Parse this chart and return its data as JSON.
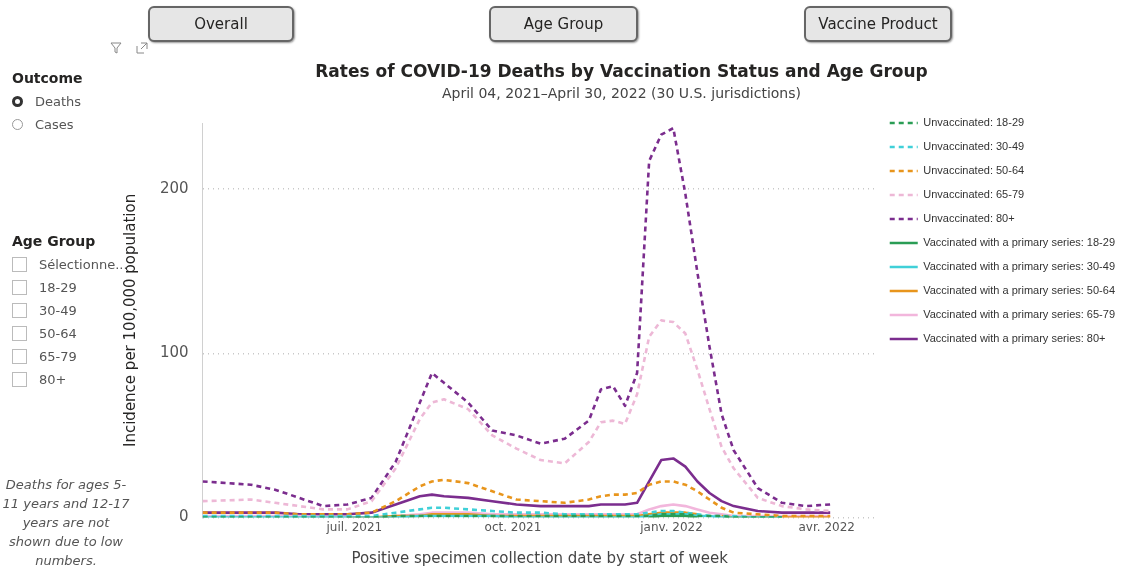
{
  "chart_data": {
    "type": "line",
    "title": "Rates of COVID-19 Deaths by Vaccination Status and Age Group",
    "subtitle": "April 04, 2021–April 30, 2022 (30 U.S. jurisdictions)",
    "xlabel": "Positive specimen collection date by start of week",
    "ylabel": "Incidence per 100,000 population",
    "annotations": [
      "Overall",
      "Age Group",
      "Vaccine Product",
      "Outcome",
      "Deaths",
      "Cases",
      "Age Group",
      "Sélectionne...",
      "18-29",
      "30-49",
      "50-64",
      "65-79",
      "80+",
      "Deaths for ages 5-11 years and 12-17 years are not shown due to low numbers."
    ],
    "x": [
      "2021-04-04",
      "2021-05-02",
      "2021-05-16",
      "2021-05-30",
      "2021-06-13",
      "2021-06-27",
      "2021-07-11",
      "2021-07-25",
      "2021-08-08",
      "2021-08-15",
      "2021-08-22",
      "2021-09-05",
      "2021-09-19",
      "2021-10-03",
      "2021-10-17",
      "2021-10-31",
      "2021-11-14",
      "2021-11-21",
      "2021-11-28",
      "2021-12-05",
      "2021-12-12",
      "2021-12-19",
      "2021-12-26",
      "2022-01-02",
      "2022-01-09",
      "2022-01-16",
      "2022-01-23",
      "2022-01-30",
      "2022-02-06",
      "2022-02-20",
      "2022-03-06",
      "2022-03-20",
      "2022-04-03"
    ],
    "series": [
      {
        "name": "Unvaccinated: 18-29",
        "color": "#2a9d55",
        "line_style": "dashed",
        "values": [
          0,
          0,
          0,
          0,
          0,
          0,
          0,
          1,
          1,
          1,
          1,
          1,
          1,
          1,
          1,
          1,
          1,
          1,
          1,
          1,
          1,
          1,
          2,
          2,
          2,
          1,
          1,
          1,
          0,
          0,
          0,
          null,
          null
        ]
      },
      {
        "name": "Unvaccinated: 30-49",
        "color": "#40d0d8",
        "line_style": "dashed",
        "values": [
          1,
          1,
          1,
          1,
          1,
          1,
          1,
          3,
          5,
          6,
          6,
          5,
          4,
          3,
          3,
          2,
          2,
          2,
          2,
          2,
          2,
          3,
          4,
          4,
          3,
          2,
          1,
          1,
          1,
          0,
          0,
          null,
          null
        ]
      },
      {
        "name": "Unvaccinated: 50-64",
        "color": "#e8951c",
        "line_style": "dashed",
        "values": [
          3,
          3,
          3,
          2,
          2,
          2,
          3,
          10,
          19,
          22,
          23,
          21,
          16,
          11,
          10,
          9,
          11,
          13,
          14,
          14,
          15,
          20,
          22,
          22,
          20,
          16,
          11,
          6,
          3,
          2,
          1,
          1,
          1
        ]
      },
      {
        "name": "Unvaccinated: 65-79",
        "color": "#edb8d6",
        "line_style": "dashed",
        "values": [
          10,
          11,
          9,
          7,
          5,
          5,
          10,
          30,
          60,
          70,
          72,
          66,
          50,
          42,
          35,
          33,
          46,
          58,
          59,
          57,
          75,
          110,
          120,
          119,
          112,
          90,
          66,
          43,
          30,
          12,
          7,
          5,
          4
        ]
      },
      {
        "name": "Unvaccinated: 80+",
        "color": "#7b2d8e",
        "line_style": "dashed",
        "values": [
          22,
          20,
          17,
          12,
          7,
          8,
          12,
          34,
          70,
          88,
          82,
          70,
          53,
          50,
          45,
          48,
          59,
          78,
          80,
          68,
          88,
          217,
          233,
          237,
          197,
          149,
          104,
          63,
          41,
          18,
          9,
          7,
          8
        ]
      },
      {
        "name": "Vaccinated with a primary series: 18-29",
        "color": "#2a9d55",
        "line_style": "solid",
        "values": [
          null,
          null,
          null,
          null,
          null,
          null,
          null,
          null,
          null,
          null,
          null,
          null,
          null,
          null,
          null,
          null,
          null,
          null,
          null,
          null,
          null,
          0,
          1,
          1,
          1,
          0,
          null,
          null,
          null,
          null,
          null,
          null,
          null
        ]
      },
      {
        "name": "Vaccinated with a primary series: 30-49",
        "color": "#40d0d8",
        "line_style": "solid",
        "values": [
          0,
          0,
          0,
          0,
          0,
          0,
          0,
          0,
          1,
          1,
          1,
          1,
          1,
          0,
          0,
          0,
          0,
          0,
          0,
          0,
          0,
          1,
          2,
          2,
          2,
          1,
          1,
          0,
          0,
          0,
          0,
          null,
          null
        ]
      },
      {
        "name": "Vaccinated with a primary series: 50-64",
        "color": "#e8951c",
        "line_style": "solid",
        "values": [
          null,
          null,
          null,
          null,
          null,
          0,
          0,
          1,
          1,
          2,
          2,
          2,
          1,
          1,
          1,
          1,
          1,
          1,
          1,
          1,
          1,
          2,
          3,
          3,
          3,
          2,
          null,
          1,
          0,
          0,
          0,
          0,
          0
        ]
      },
      {
        "name": "Vaccinated with a primary series: 65-79",
        "color": "#f2b6dc",
        "line_style": "solid",
        "values": [
          1,
          1,
          1,
          1,
          0,
          0,
          0,
          1,
          2,
          3,
          3,
          3,
          2,
          2,
          2,
          2,
          2,
          2,
          2,
          2,
          2,
          5,
          7,
          8,
          7,
          5,
          3,
          2,
          1,
          1,
          1,
          1,
          1
        ]
      },
      {
        "name": "Vaccinated with a primary series: 80+",
        "color": "#7b2d8e",
        "line_style": "solid",
        "values": [
          3,
          3,
          3,
          2,
          2,
          2,
          3,
          8,
          13,
          14,
          13,
          12,
          10,
          8,
          7,
          7,
          7,
          8,
          8,
          8,
          9,
          22,
          35,
          36,
          31,
          22,
          15,
          10,
          7,
          4,
          3,
          3,
          3
        ]
      }
    ],
    "xlim": [
      "2021-04-04",
      "2022-04-30"
    ],
    "ylim": [
      0,
      240
    ],
    "xticks": [
      {
        "value": "2021-07-01",
        "label": "juil. 2021"
      },
      {
        "value": "2021-10-01",
        "label": "oct. 2021"
      },
      {
        "value": "2022-01-01",
        "label": "janv. 2022"
      },
      {
        "value": "2022-04-01",
        "label": "avr. 2022"
      }
    ],
    "yticks": [
      0,
      100,
      200
    ],
    "grid": "y",
    "legend": "right"
  }
}
